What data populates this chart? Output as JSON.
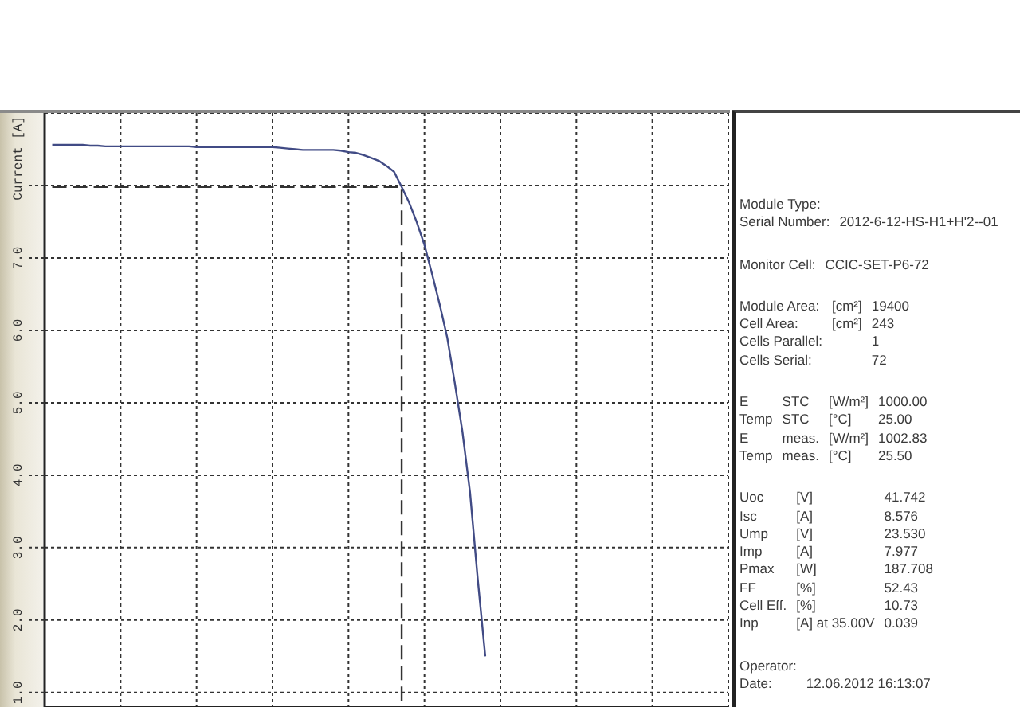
{
  "chart_data": [
    {
      "type": "line",
      "ylabel": "Current [A]",
      "categories": [
        null,
        null,
        null,
        null,
        null,
        null,
        null,
        null,
        null,
        null,
        null,
        null,
        null,
        null,
        null,
        null,
        null,
        null,
        null,
        null,
        null,
        null,
        null,
        null,
        null,
        null,
        null,
        null,
        null,
        null,
        null,
        null,
        null,
        null,
        null,
        null,
        null,
        null,
        null,
        null,
        null,
        null,
        null,
        null,
        null,
        null,
        null,
        null,
        null,
        null,
        null,
        null,
        null,
        null,
        null,
        null,
        null,
        null,
        null,
        null,
        null,
        null,
        null,
        null,
        null,
        null,
        null,
        null,
        null,
        null,
        null,
        null,
        null,
        null,
        null,
        null,
        null,
        null,
        null,
        null,
        null,
        null,
        null,
        null,
        null,
        null,
        null,
        null,
        null,
        null,
        null
      ],
      "ylim": [
        0.8,
        9
      ],
      "yticks": [
        {
          "value": 1,
          "label": "1.0"
        },
        {
          "value": 2,
          "label": "2.0"
        },
        {
          "value": 3,
          "label": "3.0"
        },
        {
          "value": 4,
          "label": "4.0"
        },
        {
          "value": 5,
          "label": "5.0"
        },
        {
          "value": 6,
          "label": "6.0"
        },
        {
          "value": 7,
          "label": "7.0"
        },
        {
          "value": 8,
          "label": null
        }
      ],
      "grid": true,
      "tick_labels": "y",
      "series": [
        {
          "color": "#414b85",
          "values": [
            null,
            8.56,
            8.56,
            8.56,
            8.56,
            8.56,
            8.55,
            8.55,
            8.54,
            8.54,
            8.54,
            8.54,
            8.54,
            8.54,
            8.54,
            8.54,
            8.54,
            8.54,
            8.54,
            8.54,
            8.53,
            8.53,
            8.53,
            8.53,
            8.53,
            8.53,
            8.53,
            8.53,
            8.53,
            8.53,
            8.53,
            8.52,
            8.51,
            8.5,
            8.49,
            8.49,
            8.49,
            8.49,
            8.49,
            8.48,
            8.46,
            8.45,
            8.42,
            8.38,
            8.34,
            8.27,
            8.19,
            7.98,
            7.76,
            7.49,
            7.18,
            6.78,
            6.36,
            5.9,
            5.27,
            4.6,
            3.76,
            2.58,
            1.5,
            null,
            null,
            null,
            null,
            null,
            null,
            null,
            null,
            null,
            null,
            null,
            null,
            null,
            null,
            null,
            null,
            null,
            null,
            null,
            null,
            null,
            null,
            null,
            null,
            null,
            null,
            null,
            null,
            null,
            null,
            null,
            null
          ]
        },
        {
          "type": "step",
          "color": "#333333",
          "line_style": "dashed",
          "values": [
            null,
            7.98,
            7.98,
            7.98,
            7.98,
            7.98,
            7.98,
            7.98,
            7.98,
            7.98,
            7.98,
            7.98,
            7.98,
            7.98,
            7.98,
            7.98,
            7.98,
            7.98,
            7.98,
            7.98,
            7.98,
            7.98,
            7.98,
            7.98,
            7.98,
            7.98,
            7.98,
            7.98,
            7.98,
            7.98,
            7.98,
            7.98,
            7.98,
            7.98,
            7.98,
            7.98,
            7.98,
            7.98,
            7.98,
            7.98,
            7.98,
            7.98,
            7.98,
            7.98,
            7.98,
            7.98,
            7.98,
            0.8,
            null,
            null,
            null,
            null,
            null,
            null,
            null,
            null,
            null,
            null,
            null,
            null,
            null,
            null,
            null,
            null,
            null,
            null,
            null,
            null,
            null,
            null,
            null,
            null,
            null,
            null,
            null,
            null,
            null,
            null,
            null,
            null,
            null,
            null,
            null,
            null,
            null,
            null,
            null,
            null,
            null,
            null,
            null
          ]
        }
      ]
    },
    {
      "type": "other",
      "annotations": [
        "Module Type:\nSerial Number:\t2012-6-12-HS-H1+H'2--01",
        "Monitor Cell:\tCCIC-SET-P6-72",
        "Module Area:\t[cm²]\t19400\nCell Area:\t[cm²]\t243\nCells Parallel:\t\t1\nCells Serial:\t\t72",
        "E\tSTC\t[W/m²]\t1000.00\nTemp\tSTC\t[°C]\t25.00\nE\tmeas.\t[W/m²]\t1002.83\nTemp\tmeas.\t[°C]\t25.50",
        "Uoc\t[V]\t41.742\nIsc\t[A]\t8.576\nUmp\t[V]\t23.530\nImp\t[A]\t7.977\nPmax\t[W]\t187.708\nFF\t[%]\t52.43\nCell Eff.\t[%]\t10.73\nInp\t[A] at 35.00V\t0.039",
        "Operator:\nDate:\t12.06.2012 16:13:07"
      ]
    }
  ]
}
